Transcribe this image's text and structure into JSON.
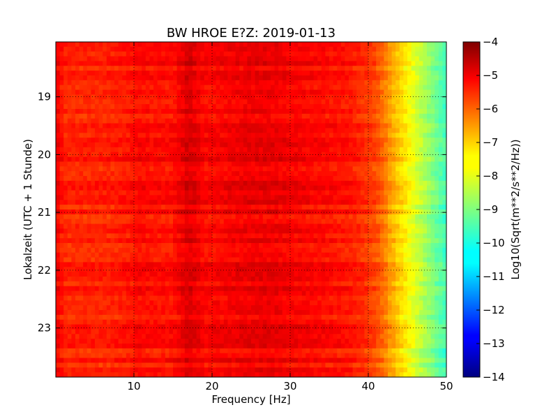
{
  "chart_data": {
    "type": "heatmap",
    "title": "BW HROE E?Z: 2019-01-13",
    "xlabel": "Frequency [Hz]",
    "ylabel": "Lokalzeit (UTC + 1 Stunde)",
    "xlim": [
      0,
      50
    ],
    "ylim": [
      18.05,
      23.85
    ],
    "y_inverted": true,
    "grid": true,
    "x_ticks": [
      10,
      20,
      30,
      40,
      50
    ],
    "x_tick_labels": [
      "10",
      "20",
      "30",
      "40",
      "50"
    ],
    "y_ticks": [
      19,
      20,
      21,
      22,
      23
    ],
    "y_tick_labels": [
      "19",
      "20",
      "21",
      "22",
      "23"
    ],
    "colorbar": {
      "label": "Log10(Sqrt(m**2/s**2/Hz))",
      "range": [
        -14,
        -4
      ],
      "ticks": [
        -4,
        -5,
        -6,
        -7,
        -8,
        -9,
        -10,
        -11,
        -12,
        -13,
        -14
      ],
      "tick_labels": [
        "−4",
        "−5",
        "−6",
        "−7",
        "−8",
        "−9",
        "−10",
        "−11",
        "−12",
        "−13",
        "−14"
      ],
      "colormap": "jet"
    },
    "frequency_profile": {
      "frequencies": [
        0,
        0.5,
        1,
        3,
        6,
        9,
        11,
        12,
        15,
        16.5,
        17,
        17.5,
        19,
        22,
        25,
        28,
        30,
        33,
        36,
        38,
        40,
        41,
        42,
        43,
        44,
        45,
        46,
        47,
        48,
        49,
        50
      ],
      "values": [
        -5.2,
        -5.3,
        -5.6,
        -5.6,
        -5.6,
        -5.5,
        -5.3,
        -5.4,
        -5.4,
        -5.0,
        -4.9,
        -5.0,
        -5.3,
        -5.2,
        -5.1,
        -5.1,
        -5.2,
        -5.3,
        -5.4,
        -5.5,
        -5.8,
        -6.0,
        -6.4,
        -6.9,
        -7.3,
        -7.7,
        -8.1,
        -8.5,
        -8.9,
        -9.3,
        -9.6
      ]
    },
    "row_count": 70
  }
}
